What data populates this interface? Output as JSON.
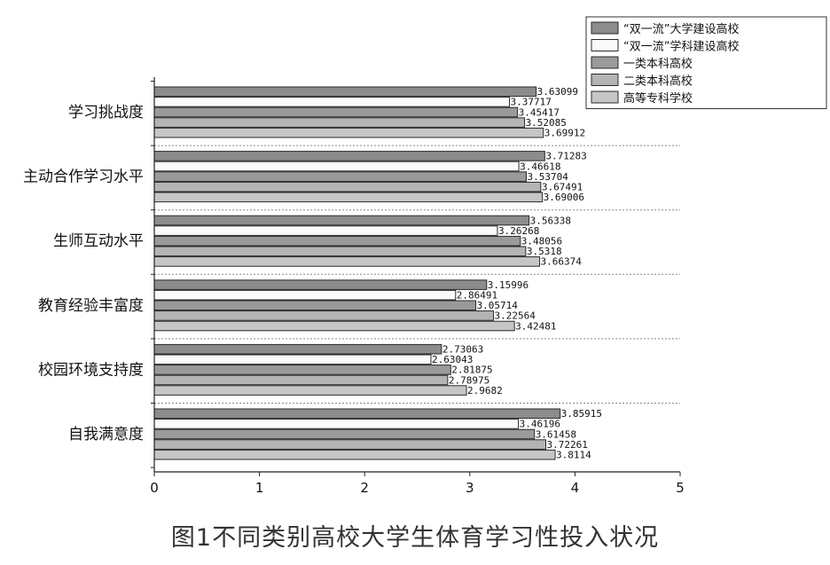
{
  "figure": {
    "caption": "图1不同类别高校大学生体育学习性投入状况"
  },
  "chart_data": {
    "type": "bar",
    "orientation": "horizontal",
    "categories": [
      "学习挑战度",
      "主动合作学习水平",
      "生师互动水平",
      "教育经验丰富度",
      "校园环境支持度",
      "自我满意度"
    ],
    "series": [
      {
        "name": "“双一流”大学建设高校",
        "color": "#8c8c8c",
        "values": [
          3.63099,
          3.71283,
          3.56338,
          3.15996,
          2.73063,
          3.85915
        ],
        "labels": [
          "3.63099",
          "3.71283",
          "3.56338",
          "3.15996",
          "2.73063",
          "3.85915"
        ]
      },
      {
        "name": "“双一流”学科建设高校",
        "color": "#fafafa",
        "values": [
          3.37717,
          3.46618,
          3.26268,
          2.86491,
          2.63043,
          3.46196
        ],
        "labels": [
          "3.37717",
          "3.46618",
          "3.26268",
          "2.86491",
          "2.63043",
          "3.46196"
        ]
      },
      {
        "name": "一类本科高校",
        "color": "#9a9a9a",
        "values": [
          3.45417,
          3.53704,
          3.48056,
          3.05714,
          2.81875,
          3.61458
        ],
        "labels": [
          "3.45417",
          "3.53704",
          "3.48056",
          "3.05714",
          "2.81875",
          "3.61458"
        ]
      },
      {
        "name": "二类本科高校",
        "color": "#b4b4b4",
        "values": [
          3.52085,
          3.67491,
          3.5318,
          3.22564,
          2.78975,
          3.72261
        ],
        "labels": [
          "3.52085",
          "3.67491",
          "3.5318",
          "3.22564",
          "2.78975",
          "3.72261"
        ]
      },
      {
        "name": "高等专科学校",
        "color": "#c6c6c6",
        "values": [
          3.69912,
          3.69006,
          3.66374,
          3.42481,
          2.9682,
          3.8114
        ],
        "labels": [
          "3.69912",
          "3.69006",
          "3.66374",
          "3.42481",
          "2.9682",
          "3.8114"
        ]
      }
    ],
    "xlim": [
      0,
      5
    ],
    "xticks": [
      "0",
      "1",
      "2",
      "3",
      "4",
      "5"
    ],
    "grid": false,
    "legend_position": "top-right"
  }
}
